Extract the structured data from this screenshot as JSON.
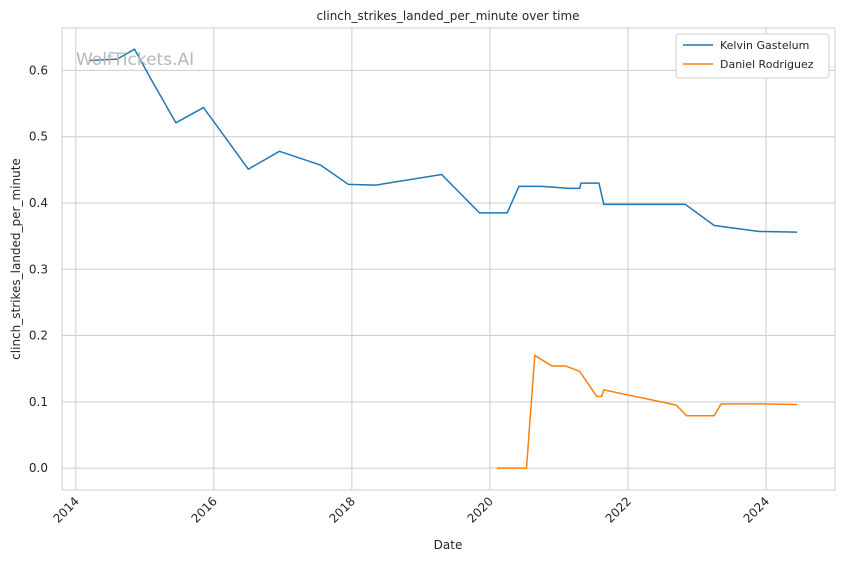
{
  "watermark": "WolfTickets.AI",
  "chart_data": {
    "type": "line",
    "title": "clinch_strikes_landed_per_minute over time",
    "xlabel": "Date",
    "ylabel": "clinch_strikes_landed_per_minute",
    "xlim": [
      2013.8,
      2025.0
    ],
    "ylim": [
      -0.033,
      0.664
    ],
    "x_ticks": [
      2014,
      2016,
      2018,
      2020,
      2022,
      2024
    ],
    "y_ticks": [
      0.0,
      0.1,
      0.2,
      0.3,
      0.4,
      0.5,
      0.6
    ],
    "grid": true,
    "legend_position": "top-right",
    "series": [
      {
        "name": "Kelvin Gastelum",
        "color": "#1f77b4",
        "x": [
          2014.2,
          2014.6,
          2014.85,
          2015.1,
          2015.45,
          2015.85,
          2016.5,
          2016.95,
          2017.55,
          2017.95,
          2018.35,
          2019.3,
          2019.85,
          2020.25,
          2020.42,
          2020.75,
          2021.15,
          2021.3,
          2021.32,
          2021.58,
          2021.65,
          2022.2,
          2022.83,
          2023.25,
          2023.9,
          2024.45
        ],
        "values": [
          0.615,
          0.617,
          0.632,
          0.585,
          0.521,
          0.544,
          0.451,
          0.478,
          0.457,
          0.428,
          0.427,
          0.443,
          0.385,
          0.385,
          0.425,
          0.425,
          0.422,
          0.422,
          0.43,
          0.43,
          0.398,
          0.398,
          0.398,
          0.366,
          0.357,
          0.356
        ]
      },
      {
        "name": "Daniel Rodriguez",
        "color": "#ff7f0e",
        "x": [
          2020.1,
          2020.53,
          2020.65,
          2020.9,
          2021.1,
          2021.3,
          2021.55,
          2021.62,
          2021.65,
          2022.25,
          2022.7,
          2022.85,
          2023.25,
          2023.35,
          2023.9,
          2024.45
        ],
        "values": [
          0.0,
          0.0,
          0.17,
          0.154,
          0.154,
          0.146,
          0.108,
          0.108,
          0.118,
          0.105,
          0.095,
          0.079,
          0.079,
          0.097,
          0.097,
          0.096
        ]
      }
    ]
  }
}
